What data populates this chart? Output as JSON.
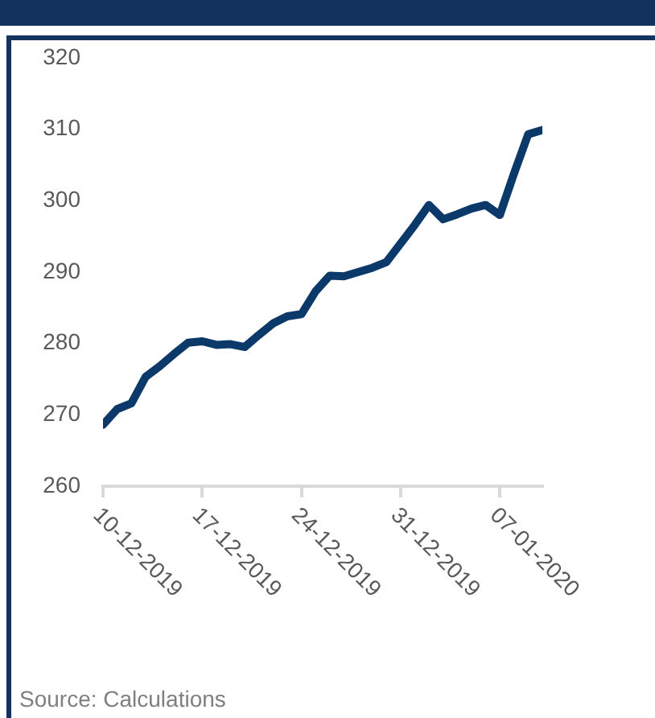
{
  "chart_data": {
    "type": "line",
    "x": [
      "2019-12-10",
      "2019-12-11",
      "2019-12-12",
      "2019-12-13",
      "2019-12-14",
      "2019-12-15",
      "2019-12-16",
      "2019-12-17",
      "2019-12-18",
      "2019-12-19",
      "2019-12-20",
      "2019-12-21",
      "2019-12-22",
      "2019-12-23",
      "2019-12-24",
      "2019-12-25",
      "2019-12-26",
      "2019-12-27",
      "2019-12-28",
      "2019-12-29",
      "2019-12-30",
      "2019-12-31",
      "2020-01-01",
      "2020-01-02",
      "2020-01-03",
      "2020-01-04",
      "2020-01-05",
      "2020-01-06",
      "2020-01-07",
      "2020-01-08",
      "2020-01-09",
      "2020-01-10"
    ],
    "series": [
      {
        "color": "#0b3a6a",
        "values": [
          268.6,
          270.8,
          271.6,
          275.3,
          276.8,
          278.5,
          280.1,
          280.3,
          279.8,
          279.9,
          279.5,
          281.2,
          282.8,
          283.8,
          284.1,
          287.3,
          289.5,
          289.4,
          290.0,
          290.6,
          291.4,
          294.0,
          296.6,
          299.4,
          297.4,
          298.1,
          298.9,
          299.4,
          298.0,
          303.8,
          309.3,
          309.9
        ]
      }
    ],
    "xlim": [
      "2019-12-10",
      "2020-01-10"
    ],
    "xticks": [
      {
        "value": "2019-12-10",
        "label": "10-12-2019"
      },
      {
        "value": "2019-12-17",
        "label": "17-12-2019"
      },
      {
        "value": "2019-12-24",
        "label": "24-12-2019"
      },
      {
        "value": "2019-12-31",
        "label": "31-12-2019"
      },
      {
        "value": "2020-01-07",
        "label": "07-01-2020"
      }
    ],
    "ylim": [
      260,
      320
    ],
    "yticks": [
      260,
      270,
      280,
      290,
      300,
      310,
      320
    ],
    "grid": false,
    "legend": false,
    "marker": "none",
    "line_style": "solid",
    "annotations": [
      "Source: Calculations"
    ]
  }
}
